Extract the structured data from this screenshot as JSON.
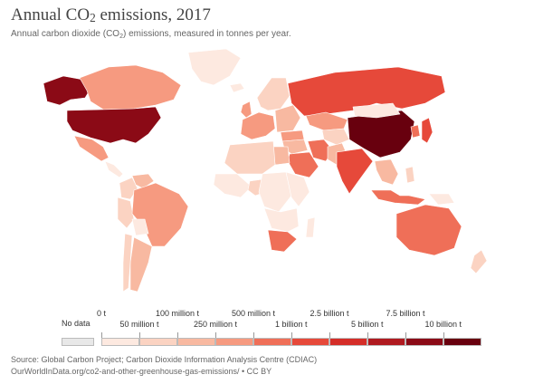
{
  "title": {
    "pre": "Annual CO",
    "sub": "2",
    "post": " emissions, 2017"
  },
  "subtitle": {
    "pre": "Annual carbon dioxide (CO",
    "sub": "2",
    "post": ") emissions, measured in tonnes per year."
  },
  "legend": {
    "no_data_label": "No data",
    "no_data_color": "#e8e8e8",
    "tick_labels": [
      "0 t",
      "50 million t",
      "100 million t",
      "250 million t",
      "500 million t",
      "1 billion t",
      "2.5 billion t",
      "5 billion t",
      "7.5 billion t",
      "10 billion t"
    ],
    "bin_colors": [
      "#fde9e0",
      "#fbd3c2",
      "#f8b9a1",
      "#f69a80",
      "#ef6f58",
      "#e6493a",
      "#d42d28",
      "#b01a20",
      "#8b0a16",
      "#68000e"
    ]
  },
  "footer": {
    "source": "Source: Global Carbon Project; Carbon Dioxide Information Analysis Centre (CDIAC)",
    "url": "OurWorldInData.org/co2-and-other-greenhouse-gas-emissions/ • CC BY"
  },
  "map_regions": [
    {
      "name": "Alaska",
      "color": "#8b0a16"
    },
    {
      "name": "Canada",
      "color": "#f69a80"
    },
    {
      "name": "United States",
      "color": "#8b0a16"
    },
    {
      "name": "Mexico",
      "color": "#f69a80"
    },
    {
      "name": "Greenland",
      "color": "#fde9e0"
    },
    {
      "name": "Central America",
      "color": "#fde9e0"
    },
    {
      "name": "Colombia",
      "color": "#fbd3c2"
    },
    {
      "name": "Venezuela",
      "color": "#f8b9a1"
    },
    {
      "name": "Peru",
      "color": "#fbd3c2"
    },
    {
      "name": "Brazil",
      "color": "#f69a80"
    },
    {
      "name": "Bolivia",
      "color": "#fde9e0"
    },
    {
      "name": "Argentina",
      "color": "#f8b9a1"
    },
    {
      "name": "Chile",
      "color": "#fbd3c2"
    },
    {
      "name": "Iceland",
      "color": "#fde9e0"
    },
    {
      "name": "United Kingdom",
      "color": "#f69a80"
    },
    {
      "name": "Western Europe",
      "color": "#f69a80"
    },
    {
      "name": "Scandinavia",
      "color": "#fbd3c2"
    },
    {
      "name": "Eastern Europe",
      "color": "#f8b9a1"
    },
    {
      "name": "Russia",
      "color": "#e6493a"
    },
    {
      "name": "Kazakhstan",
      "color": "#f69a80"
    },
    {
      "name": "Central Asia",
      "color": "#fbd3c2"
    },
    {
      "name": "Turkey",
      "color": "#f69a80"
    },
    {
      "name": "Iran",
      "color": "#ef6f58"
    },
    {
      "name": "Saudi Arabia",
      "color": "#ef6f58"
    },
    {
      "name": "Middle East",
      "color": "#f8b9a1"
    },
    {
      "name": "Egypt",
      "color": "#f8b9a1"
    },
    {
      "name": "North Africa",
      "color": "#fbd3c2"
    },
    {
      "name": "West Africa",
      "color": "#fde9e0"
    },
    {
      "name": "Nigeria",
      "color": "#fbd3c2"
    },
    {
      "name": "Central Africa",
      "color": "#fde9e0"
    },
    {
      "name": "East Africa",
      "color": "#fde9e0"
    },
    {
      "name": "Southern Africa",
      "color": "#fde9e0"
    },
    {
      "name": "South Africa",
      "color": "#ef6f58"
    },
    {
      "name": "Madagascar",
      "color": "#fde9e0"
    },
    {
      "name": "Pakistan",
      "color": "#f8b9a1"
    },
    {
      "name": "India",
      "color": "#e6493a"
    },
    {
      "name": "China",
      "color": "#68000e"
    },
    {
      "name": "Mongolia",
      "color": "#fde9e0"
    },
    {
      "name": "Korea",
      "color": "#ef6f58"
    },
    {
      "name": "Japan",
      "color": "#e6493a"
    },
    {
      "name": "Southeast Asia",
      "color": "#f8b9a1"
    },
    {
      "name": "Indonesia",
      "color": "#ef6f58"
    },
    {
      "name": "Philippines",
      "color": "#fbd3c2"
    },
    {
      "name": "Papua New Guinea",
      "color": "#fde9e0"
    },
    {
      "name": "Australia",
      "color": "#ef6f58"
    },
    {
      "name": "New Zealand",
      "color": "#fbd3c2"
    }
  ]
}
